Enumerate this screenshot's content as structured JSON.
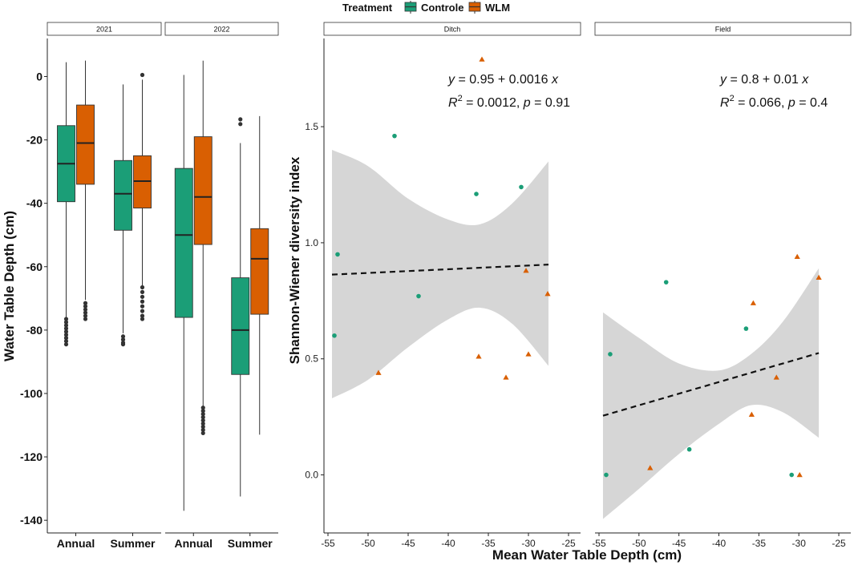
{
  "legend": {
    "title": "Treatment",
    "items": [
      {
        "label": "Controle",
        "color": "#1b9e77"
      },
      {
        "label": "WLM",
        "color": "#d95f02"
      }
    ]
  },
  "chart_data": [
    {
      "type": "box",
      "ylabel": "Water Table Depth (cm)",
      "ylim": [
        -144,
        12
      ],
      "yticks": [
        0,
        -20,
        -40,
        -60,
        -80,
        -100,
        -120,
        -140
      ],
      "facets": [
        {
          "label": "2021",
          "categories": [
            "Annual",
            "Summer"
          ],
          "boxes": [
            {
              "category": "Annual",
              "treatment": "Controle",
              "min": -76,
              "q1": -39.5,
              "median": -27.5,
              "q3": -15.5,
              "max": 4.5,
              "outliers": [
                -76.5,
                -77.5,
                -78.5,
                -79.5,
                -80.5,
                -81.5,
                -82.5,
                -83.5,
                -84.5
              ]
            },
            {
              "category": "Annual",
              "treatment": "WLM",
              "min": -70.5,
              "q1": -34,
              "median": -21,
              "q3": -9,
              "max": 5,
              "outliers": [
                -71.5,
                -72.5,
                -73.5,
                -74.5,
                -75.5,
                -76.5
              ]
            },
            {
              "category": "Summer",
              "treatment": "Controle",
              "min": -81,
              "q1": -48.5,
              "median": -37,
              "q3": -26.5,
              "max": -2.5,
              "outliers": [
                -82,
                -83,
                -84,
                -84.5
              ]
            },
            {
              "category": "Summer",
              "treatment": "WLM",
              "min": -66,
              "q1": -41.5,
              "median": -33,
              "q3": -25,
              "max": -1,
              "outliers": [
                0.5,
                -66.5,
                -68,
                -69.5,
                -71,
                -72.5,
                -74,
                -75.5,
                -76.5
              ]
            }
          ]
        },
        {
          "label": "2022",
          "categories": [
            "Annual",
            "Summer"
          ],
          "boxes": [
            {
              "category": "Annual",
              "treatment": "Controle",
              "min": -137,
              "q1": -76,
              "median": -50,
              "q3": -29,
              "max": 0.5,
              "outliers": []
            },
            {
              "category": "Annual",
              "treatment": "WLM",
              "min": -104,
              "q1": -53,
              "median": -38,
              "q3": -19,
              "max": 5,
              "outliers": [
                -104.5,
                -105.5,
                -106.5,
                -107.5,
                -108.5,
                -109.5,
                -110.5,
                -111.5,
                -112.5
              ]
            },
            {
              "category": "Summer",
              "treatment": "Controle",
              "min": -132.5,
              "q1": -94,
              "median": -80,
              "q3": -63.5,
              "max": -21,
              "outliers": [
                -13.5,
                -15
              ]
            },
            {
              "category": "Summer",
              "treatment": "WLM",
              "min": -113,
              "q1": -75,
              "median": -57.5,
              "q3": -48,
              "max": -12.5,
              "outliers": []
            }
          ]
        }
      ]
    },
    {
      "type": "scatter",
      "xlabel": "Mean Water Table Depth (cm)",
      "ylabel": "Shannon-Wiener diversity index",
      "xlim": [
        -55.5,
        -23.5
      ],
      "ylim": [
        -0.25,
        1.88
      ],
      "xticks": [
        -55,
        -50,
        -45,
        -40,
        -35,
        -30,
        -25
      ],
      "xtick_labels": [
        "-55",
        "-50",
        "-45",
        "-40",
        "-35",
        "-30",
        "-25"
      ],
      "yticks": [
        0.0,
        0.5,
        1.0,
        1.5
      ],
      "ytick_labels": [
        "0.0",
        "0.5",
        "1.0",
        "1.5"
      ],
      "facets": [
        {
          "label": "Ditch",
          "equation": "y = 0.95 + 0.0016 x",
          "equation_parts": {
            "lhs": "y",
            "rest": " = 0.95 + 0.0016 ",
            "x": "x"
          },
          "stats_parts": {
            "r": "R",
            "sup": "2",
            "r_rest": " = 0.0012, ",
            "p": "p",
            "p_rest": " = 0.91"
          },
          "regression": {
            "intercept": 0.95,
            "slope": 0.0016,
            "x_range": [
              -54.5,
              -27.5
            ]
          },
          "ribbon": {
            "x": [
              -54.5,
              -50,
              -45,
              -40,
              -36,
              -32,
              -27.5
            ],
            "lower": [
              0.33,
              0.41,
              0.55,
              0.67,
              0.72,
              0.65,
              0.47
            ],
            "upper": [
              1.4,
              1.33,
              1.19,
              1.1,
              1.08,
              1.17,
              1.35
            ]
          },
          "points": [
            {
              "x": -54.2,
              "y": 0.6,
              "treatment": "Controle"
            },
            {
              "x": -53.8,
              "y": 0.95,
              "treatment": "Controle"
            },
            {
              "x": -46.7,
              "y": 1.46,
              "treatment": "Controle"
            },
            {
              "x": -43.7,
              "y": 0.77,
              "treatment": "Controle"
            },
            {
              "x": -36.5,
              "y": 1.21,
              "treatment": "Controle"
            },
            {
              "x": -30.9,
              "y": 1.24,
              "treatment": "Controle"
            },
            {
              "x": -48.7,
              "y": 0.44,
              "treatment": "WLM"
            },
            {
              "x": -35.8,
              "y": 1.79,
              "treatment": "WLM"
            },
            {
              "x": -36.2,
              "y": 0.51,
              "treatment": "WLM"
            },
            {
              "x": -32.8,
              "y": 0.42,
              "treatment": "WLM"
            },
            {
              "x": -30.3,
              "y": 0.88,
              "treatment": "WLM"
            },
            {
              "x": -30.0,
              "y": 0.52,
              "treatment": "WLM"
            },
            {
              "x": -27.6,
              "y": 0.78,
              "treatment": "WLM"
            }
          ]
        },
        {
          "label": "Field",
          "equation": "y = 0.8 + 0.01 x",
          "equation_parts": {
            "lhs": "y",
            "rest": " = 0.8 + 0.01 ",
            "x": "x"
          },
          "stats_parts": {
            "r": "R",
            "sup": "2",
            "r_rest": " = 0.066, ",
            "p": "p",
            "p_rest": " = 0.4"
          },
          "regression": {
            "intercept": 0.8,
            "slope": 0.01,
            "x_range": [
              -54.5,
              -27.5
            ]
          },
          "ribbon": {
            "x": [
              -54.5,
              -50,
              -45,
              -40,
              -36,
              -32,
              -27.5
            ],
            "lower": [
              -0.19,
              -0.06,
              0.09,
              0.22,
              0.3,
              0.27,
              0.16
            ],
            "upper": [
              0.7,
              0.59,
              0.48,
              0.45,
              0.52,
              0.66,
              0.89
            ]
          },
          "points": [
            {
              "x": -54.1,
              "y": 0.0,
              "treatment": "Controle"
            },
            {
              "x": -53.6,
              "y": 0.52,
              "treatment": "Controle"
            },
            {
              "x": -46.6,
              "y": 0.83,
              "treatment": "Controle"
            },
            {
              "x": -43.7,
              "y": 0.11,
              "treatment": "Controle"
            },
            {
              "x": -36.6,
              "y": 0.63,
              "treatment": "Controle"
            },
            {
              "x": -30.9,
              "y": 0.0,
              "treatment": "Controle"
            },
            {
              "x": -48.6,
              "y": 0.03,
              "treatment": "WLM"
            },
            {
              "x": -35.9,
              "y": 0.26,
              "treatment": "WLM"
            },
            {
              "x": -35.7,
              "y": 0.74,
              "treatment": "WLM"
            },
            {
              "x": -32.8,
              "y": 0.42,
              "treatment": "WLM"
            },
            {
              "x": -30.2,
              "y": 0.94,
              "treatment": "WLM"
            },
            {
              "x": -29.9,
              "y": 0.0,
              "treatment": "WLM"
            },
            {
              "x": -27.5,
              "y": 0.85,
              "treatment": "WLM"
            }
          ]
        }
      ]
    }
  ]
}
